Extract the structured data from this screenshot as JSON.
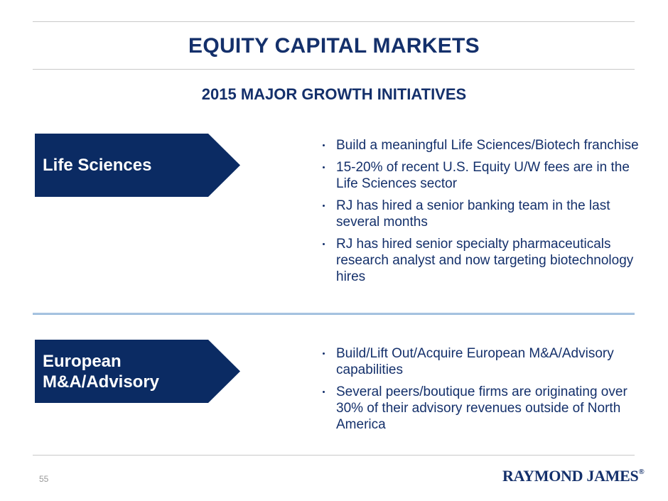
{
  "slide": {
    "title": "EQUITY CAPITAL MARKETS",
    "subtitle": "2015 MAJOR GROWTH INITIATIVES",
    "page_number": "55",
    "logo_text": "RAYMOND JAMES",
    "logo_mark": "®"
  },
  "colors": {
    "navy": "#0b2b63",
    "divider_blue": "#8fb3d8",
    "rule_gray": "#c8c8c8"
  },
  "sections": [
    {
      "label_lines": [
        "Life Sciences"
      ],
      "bullets": [
        "Build a meaningful Life Sciences/Biotech franchise",
        "15-20% of recent U.S. Equity U/W fees are in the Life Sciences sector",
        "RJ has hired a senior banking team in the last several months",
        "RJ has hired senior specialty pharmaceuticals research analyst and now targeting biotechnology hires"
      ]
    },
    {
      "label_lines": [
        "European",
        "M&A/Advisory"
      ],
      "bullets": [
        "Build/Lift Out/Acquire European M&A/Advisory capabilities",
        "Several peers/boutique firms are originating over 30% of their advisory revenues outside of North America"
      ]
    }
  ]
}
